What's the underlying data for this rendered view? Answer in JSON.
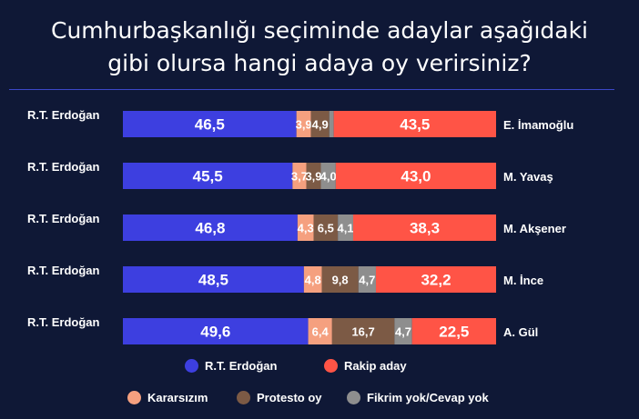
{
  "title_lines": [
    "Cumhurbaşkanlığı seçiminde adaylar aşağıdaki",
    "gibi olursa hangi adaya oy verirsiniz?"
  ],
  "colors": {
    "background": "#0f1836",
    "erdogan": "#3d3fe0",
    "kararsiz": "#f5a07f",
    "protesto": "#7c5a45",
    "fikrim_yok": "#8e8e8e",
    "rakip": "#ff5446"
  },
  "chart_data": {
    "type": "bar",
    "orientation": "horizontal",
    "stacked": true,
    "left_labels": [
      "R.T. Erdoğan",
      "R.T. Erdoğan",
      "R.T. Erdoğan",
      "R.T. Erdoğan",
      "R.T. Erdoğan"
    ],
    "categories": [
      "E. İmamoğlu",
      "M. Yavaş",
      "M. Akşener",
      "M. İnce",
      "A. Gül"
    ],
    "series": [
      {
        "name": "R.T. Erdoğan",
        "key": "erdogan",
        "values": [
          46.5,
          45.5,
          46.8,
          48.5,
          49.6
        ],
        "labels": [
          "46,5",
          "45,5",
          "46,8",
          "48,5",
          "49,6"
        ]
      },
      {
        "name": "Kararsızım",
        "key": "kararsiz",
        "values": [
          3.9,
          3.7,
          4.3,
          4.8,
          6.4
        ],
        "labels": [
          "3,9",
          "3,7",
          "4,3",
          "4,8",
          "6,4"
        ]
      },
      {
        "name": "Protesto oy",
        "key": "protesto",
        "values": [
          4.9,
          3.9,
          6.5,
          9.8,
          16.7
        ],
        "labels": [
          "4,9",
          "3,9",
          "6,5",
          "9,8",
          "16,7"
        ]
      },
      {
        "name": "Fikrim yok/Cevap yok",
        "key": "fikrim_yok",
        "values": [
          1.2,
          4.0,
          4.1,
          4.7,
          4.7
        ],
        "labels": [
          "",
          "4,0",
          "4,1",
          "4,7",
          "4,7"
        ]
      },
      {
        "name": "Rakip aday",
        "key": "rakip",
        "values": [
          43.5,
          43.0,
          38.3,
          32.2,
          22.5
        ],
        "labels": [
          "43,5",
          "43,0",
          "38,3",
          "32,2",
          "22,5"
        ]
      }
    ],
    "legend": {
      "row1": [
        {
          "label": "R.T. Erdoğan",
          "key": "erdogan"
        },
        {
          "label": "Rakip aday",
          "key": "rakip"
        }
      ],
      "row2": [
        {
          "label": "Kararsızım",
          "key": "kararsiz"
        },
        {
          "label": "Protesto oy",
          "key": "protesto"
        },
        {
          "label": "Fikrim yok/Cevap yok",
          "key": "fikrim_yok"
        }
      ],
      "placement": "bottom"
    }
  }
}
